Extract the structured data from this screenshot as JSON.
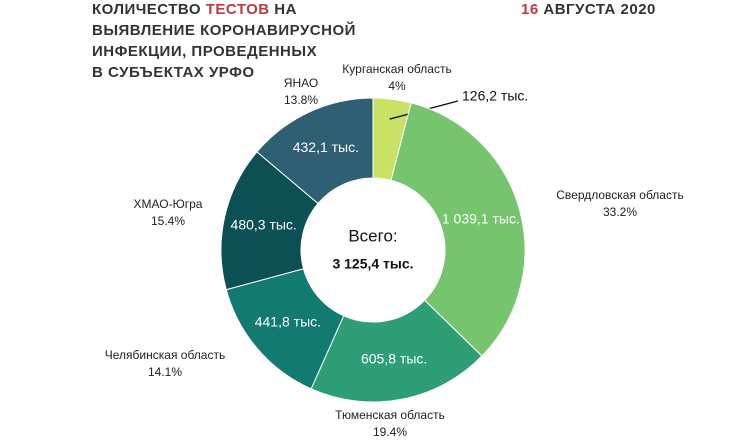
{
  "chart_data": {
    "type": "donut",
    "title_parts": [
      "КОЛИЧЕСТВО ",
      "ТЕСТОВ",
      " НА",
      "ВЫЯВЛЕНИЕ КОРОНАВИРУСНОЙ",
      "ИНФЕКЦИИ, ПРОВЕДЕННЫХ",
      "В СУБЪЕКТАХ УРФО"
    ],
    "date_parts": [
      "16",
      " АВГУСТА 2020"
    ],
    "center_caption": "Всего:",
    "center_total": "3 125,4 тыс.",
    "categories": [
      "Курганская область",
      "Свердловская область",
      "Тюменская область",
      "Челябинская область",
      "ХМАО-Югра",
      "ЯНАО"
    ],
    "share_labels": [
      "4%",
      "33.2%",
      "19.4%",
      "14.1%",
      "15.4%",
      "13.8%"
    ],
    "values": [
      126.2,
      1039.1,
      605.8,
      441.8,
      480.3,
      432.1
    ],
    "value_labels": [
      "126,2 тыс.",
      "1 039,1 тыс.",
      "605,8 тыс.",
      "441,8 тыс.",
      "480,3 тыс.",
      "432,1 тыс."
    ],
    "colors": [
      "#c9e265",
      "#76c46e",
      "#2e9e77",
      "#127a70",
      "#0c4f55",
      "#2e5f73"
    ]
  }
}
